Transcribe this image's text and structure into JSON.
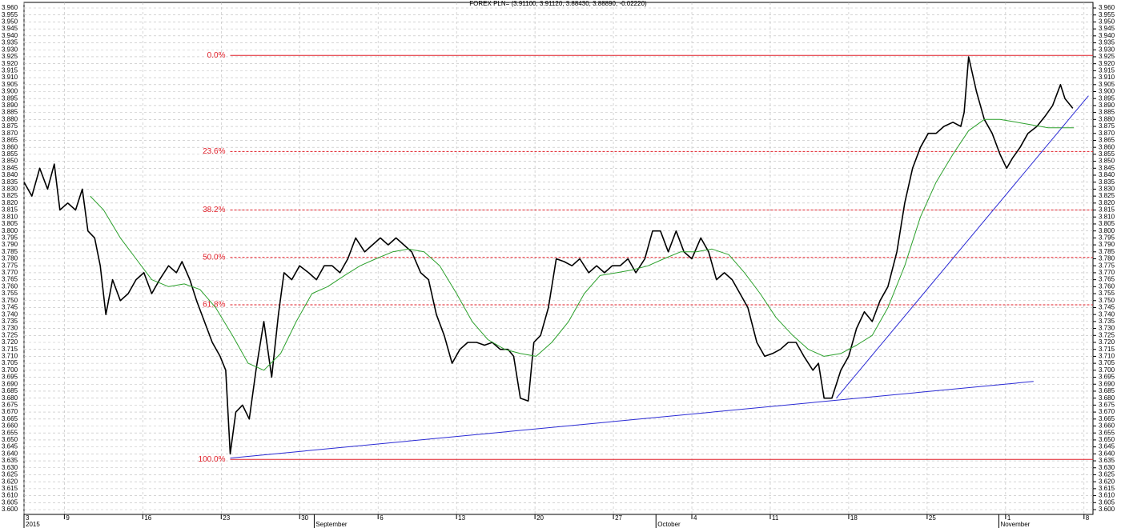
{
  "chart_data": {
    "type": "line",
    "title": "FOREX PLN= (3.91100, 3.91120, 3.88430, 3.88890, -0.02220)",
    "xlim": [
      0,
      95.4
    ],
    "ylim": [
      3.6,
      3.96
    ],
    "grid": true,
    "xticks": [
      {
        "value": 0,
        "label": "3"
      },
      {
        "value": 3.6,
        "label": "9"
      },
      {
        "value": 10.6,
        "label": "16"
      },
      {
        "value": 17.6,
        "label": "23"
      },
      {
        "value": 24.6,
        "label": "30"
      },
      {
        "value": 31.6,
        "label": "6"
      },
      {
        "value": 38.6,
        "label": "13"
      },
      {
        "value": 45.6,
        "label": "20"
      },
      {
        "value": 52.6,
        "label": "27"
      },
      {
        "value": 59.6,
        "label": "4"
      },
      {
        "value": 66.6,
        "label": "11"
      },
      {
        "value": 73.6,
        "label": "18"
      },
      {
        "value": 80.6,
        "label": "25"
      },
      {
        "value": 87.6,
        "label": "1"
      },
      {
        "value": 94.6,
        "label": "8"
      }
    ],
    "month_ticks": [
      {
        "value": 0,
        "label": "2015"
      },
      {
        "value": 25.9,
        "label": "September"
      },
      {
        "value": 56.4,
        "label": "October"
      },
      {
        "value": 87,
        "label": "November"
      }
    ],
    "yticks": [
      {
        "value": 3.6,
        "label": "3.600"
      },
      3.605,
      {
        "value": 3.61,
        "label": "3.610"
      },
      3.615,
      {
        "value": 3.62,
        "label": "3.620"
      },
      3.625,
      {
        "value": 3.63,
        "label": "3.630"
      },
      3.635,
      {
        "value": 3.64,
        "label": "3.640"
      },
      3.645,
      {
        "value": 3.65,
        "label": "3.650"
      },
      3.655,
      {
        "value": 3.66,
        "label": "3.660"
      },
      3.665,
      {
        "value": 3.67,
        "label": "3.670"
      },
      3.675,
      {
        "value": 3.68,
        "label": "3.680"
      },
      3.685,
      {
        "value": 3.69,
        "label": "3.690"
      },
      3.695,
      {
        "value": 3.7,
        "label": "3.700"
      },
      3.705,
      {
        "value": 3.71,
        "label": "3.710"
      },
      3.715,
      {
        "value": 3.72,
        "label": "3.720"
      },
      3.725,
      {
        "value": 3.73,
        "label": "3.730"
      },
      3.735,
      {
        "value": 3.74,
        "label": "3.740"
      },
      3.745,
      {
        "value": 3.75,
        "label": "3.750"
      },
      3.755,
      {
        "value": 3.76,
        "label": "3.760"
      },
      3.765,
      {
        "value": 3.77,
        "label": "3.770"
      },
      3.775,
      {
        "value": 3.78,
        "label": "3.780"
      },
      3.785,
      {
        "value": 3.79,
        "label": "3.790"
      },
      3.795,
      {
        "value": 3.8,
        "label": "3.800"
      },
      3.805,
      {
        "value": 3.81,
        "label": "3.810"
      },
      3.815,
      {
        "value": 3.82,
        "label": "3.820"
      },
      3.825,
      {
        "value": 3.83,
        "label": "3.830"
      },
      3.835,
      {
        "value": 3.84,
        "label": "3.840"
      },
      3.845,
      {
        "value": 3.85,
        "label": "3.850"
      },
      3.855,
      {
        "value": 3.86,
        "label": "3.860"
      },
      3.865,
      {
        "value": 3.87,
        "label": "3.870"
      },
      3.875,
      {
        "value": 3.88,
        "label": "3.880"
      },
      3.885,
      {
        "value": 3.89,
        "label": "3.890"
      },
      3.895,
      {
        "value": 3.9,
        "label": "3.900"
      },
      3.905,
      {
        "value": 3.91,
        "label": "3.910"
      },
      3.915,
      {
        "value": 3.92,
        "label": "3.920"
      },
      3.925,
      {
        "value": 3.93,
        "label": "3.930"
      },
      3.935,
      {
        "value": 3.94,
        "label": "3.940"
      },
      3.945,
      {
        "value": 3.95,
        "label": "3.950"
      },
      3.955,
      {
        "value": 3.96,
        "label": "3.960"
      }
    ],
    "series": [
      {
        "color": "#000000",
        "width": 1.6,
        "x": [
          0,
          0.7,
          1.4,
          2.1,
          2.7,
          3.2,
          3.9,
          4.6,
          5.2,
          5.7,
          6.3,
          6.8,
          7.3,
          7.9,
          8.6,
          9.3,
          10,
          10.7,
          11.4,
          12.1,
          12.9,
          13.6,
          14.1,
          14.8,
          15.4,
          16.1,
          16.8,
          17.5,
          18,
          18.4,
          18.9,
          19.5,
          20.1,
          20.7,
          21.4,
          22.1,
          22.7,
          23.2,
          23.9,
          24.6,
          25.4,
          26.1,
          26.8,
          27.5,
          28.2,
          28.9,
          29.6,
          30.4,
          31.1,
          31.8,
          32.5,
          33.2,
          33.9,
          34.6,
          35.4,
          36.1,
          36.8,
          37.5,
          38.2,
          38.9,
          39.6,
          40.4,
          41.1,
          41.8,
          42.5,
          43.2,
          43.7,
          44.3,
          45,
          45.5,
          46.1,
          46.8,
          47.5,
          48.2,
          48.9,
          49.6,
          50.4,
          51.1,
          51.8,
          52.5,
          53.2,
          53.9,
          54.6,
          55.4,
          56.1,
          56.8,
          57.5,
          58.2,
          58.9,
          59.6,
          60.4,
          61.1,
          61.8,
          62.5,
          63.2,
          63.9,
          64.6,
          65.4,
          66.1,
          66.8,
          67.5,
          68.2,
          68.9,
          69.6,
          70.4,
          70.9,
          71.4,
          72.1,
          72.9,
          73.6,
          74.3,
          75,
          75.7,
          76.4,
          77.1,
          77.9,
          78.6,
          79.3,
          80,
          80.7,
          81.4,
          82.1,
          82.9,
          83.6,
          83.9,
          84.3,
          85,
          85.7,
          86.4,
          87.1,
          87.7,
          88.2,
          88.9,
          89.6,
          90.4,
          91.1,
          91.8,
          92.5,
          92.9,
          93.6
        ],
        "values": [
          3.835,
          3.825,
          3.845,
          3.83,
          3.848,
          3.815,
          3.82,
          3.815,
          3.83,
          3.8,
          3.795,
          3.775,
          3.74,
          3.765,
          3.75,
          3.755,
          3.765,
          3.77,
          3.755,
          3.765,
          3.775,
          3.77,
          3.778,
          3.765,
          3.75,
          3.735,
          3.72,
          3.71,
          3.7,
          3.64,
          3.67,
          3.675,
          3.665,
          3.7,
          3.735,
          3.695,
          3.74,
          3.77,
          3.765,
          3.775,
          3.77,
          3.765,
          3.775,
          3.775,
          3.77,
          3.78,
          3.795,
          3.785,
          3.79,
          3.795,
          3.79,
          3.795,
          3.79,
          3.785,
          3.77,
          3.765,
          3.74,
          3.725,
          3.705,
          3.715,
          3.72,
          3.72,
          3.718,
          3.72,
          3.715,
          3.715,
          3.71,
          3.68,
          3.678,
          3.72,
          3.725,
          3.745,
          3.78,
          3.778,
          3.775,
          3.78,
          3.77,
          3.775,
          3.77,
          3.775,
          3.775,
          3.78,
          3.77,
          3.78,
          3.8,
          3.8,
          3.785,
          3.8,
          3.785,
          3.78,
          3.795,
          3.785,
          3.765,
          3.77,
          3.765,
          3.755,
          3.745,
          3.72,
          3.71,
          3.712,
          3.715,
          3.72,
          3.72,
          3.71,
          3.7,
          3.705,
          3.68,
          3.68,
          3.7,
          3.71,
          3.73,
          3.742,
          3.735,
          3.75,
          3.76,
          3.785,
          3.82,
          3.845,
          3.86,
          3.87,
          3.87,
          3.875,
          3.878,
          3.875,
          3.885,
          3.925,
          3.9,
          3.88,
          3.87,
          3.855,
          3.845,
          3.852,
          3.86,
          3.87,
          3.875,
          3.882,
          3.89,
          3.905,
          3.895,
          3.888
        ]
      },
      {
        "color": "#2ca02c",
        "width": 1,
        "x": [
          5.9,
          7.1,
          8.6,
          10,
          11.4,
          12.9,
          14.3,
          15.7,
          17.1,
          18.6,
          20,
          21.4,
          22.9,
          24.3,
          25.7,
          27.1,
          28.6,
          30,
          31.4,
          32.9,
          34.3,
          35.7,
          37.1,
          38.6,
          40,
          41.4,
          42.9,
          44.3,
          45.7,
          47.1,
          48.6,
          50,
          51.4,
          52.9,
          54.3,
          55.7,
          57.1,
          58.6,
          60,
          61.4,
          62.9,
          64.3,
          65.7,
          67.1,
          68.6,
          70,
          71.4,
          72.9,
          74.3,
          75.7,
          77.1,
          78.6,
          80,
          81.4,
          82.9,
          84.3,
          85.7,
          87.1,
          88.6,
          90,
          91.4,
          92.9,
          93.7
        ],
        "values": [
          3.825,
          3.815,
          3.795,
          3.78,
          3.765,
          3.76,
          3.762,
          3.758,
          3.745,
          3.725,
          3.705,
          3.7,
          3.712,
          3.735,
          3.755,
          3.76,
          3.768,
          3.775,
          3.78,
          3.785,
          3.787,
          3.785,
          3.775,
          3.755,
          3.735,
          3.722,
          3.715,
          3.712,
          3.71,
          3.72,
          3.735,
          3.755,
          3.768,
          3.77,
          3.772,
          3.775,
          3.78,
          3.785,
          3.785,
          3.787,
          3.783,
          3.77,
          3.755,
          3.738,
          3.725,
          3.715,
          3.71,
          3.712,
          3.718,
          3.725,
          3.745,
          3.775,
          3.81,
          3.835,
          3.855,
          3.872,
          3.88,
          3.88,
          3.878,
          3.876,
          3.874,
          3.874,
          3.874
        ]
      },
      {
        "color": "#2a2ad4",
        "width": 1,
        "x": [
          18.4,
          90.1
        ],
        "values": [
          3.637,
          3.692
        ]
      },
      {
        "color": "#2a2ad4",
        "width": 1,
        "x": [
          72.5,
          95
        ],
        "values": [
          3.68,
          3.897
        ]
      }
    ],
    "fib_levels": {
      "color": "#e0202a",
      "x": 18.4,
      "levels": [
        {
          "label": "0.0%",
          "value": 3.926
        },
        {
          "label": "23.6%",
          "value": 3.857
        },
        {
          "label": "38.2%",
          "value": 3.815
        },
        {
          "label": "50.0%",
          "value": 3.781
        },
        {
          "label": "61.8%",
          "value": 3.747
        },
        {
          "label": "100.0%",
          "value": 3.636
        }
      ]
    }
  }
}
